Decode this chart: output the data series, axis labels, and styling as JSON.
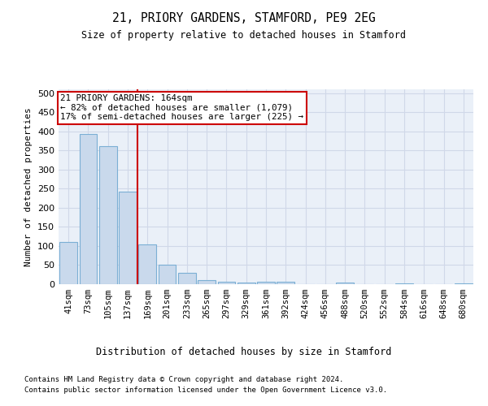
{
  "title": "21, PRIORY GARDENS, STAMFORD, PE9 2EG",
  "subtitle": "Size of property relative to detached houses in Stamford",
  "xlabel": "Distribution of detached houses by size in Stamford",
  "ylabel": "Number of detached properties",
  "categories": [
    "41sqm",
    "73sqm",
    "105sqm",
    "137sqm",
    "169sqm",
    "201sqm",
    "233sqm",
    "265sqm",
    "297sqm",
    "329sqm",
    "361sqm",
    "392sqm",
    "424sqm",
    "456sqm",
    "488sqm",
    "520sqm",
    "552sqm",
    "584sqm",
    "616sqm",
    "648sqm",
    "680sqm"
  ],
  "values": [
    110,
    393,
    362,
    243,
    105,
    50,
    30,
    10,
    6,
    5,
    7,
    7,
    1,
    0,
    4,
    0,
    0,
    2,
    0,
    0,
    2
  ],
  "bar_color": "#c9d9ec",
  "bar_edgecolor": "#7bafd4",
  "grid_color": "#d0d8e8",
  "bg_color": "#eaf0f8",
  "vline_x_index": 4,
  "vline_color": "#cc0000",
  "annotation_line1": "21 PRIORY GARDENS: 164sqm",
  "annotation_line2": "← 82% of detached houses are smaller (1,079)",
  "annotation_line3": "17% of semi-detached houses are larger (225) →",
  "annotation_box_color": "#cc0000",
  "footer1": "Contains HM Land Registry data © Crown copyright and database right 2024.",
  "footer2": "Contains public sector information licensed under the Open Government Licence v3.0.",
  "ylim": [
    0,
    510
  ],
  "yticks": [
    0,
    50,
    100,
    150,
    200,
    250,
    300,
    350,
    400,
    450,
    500
  ]
}
